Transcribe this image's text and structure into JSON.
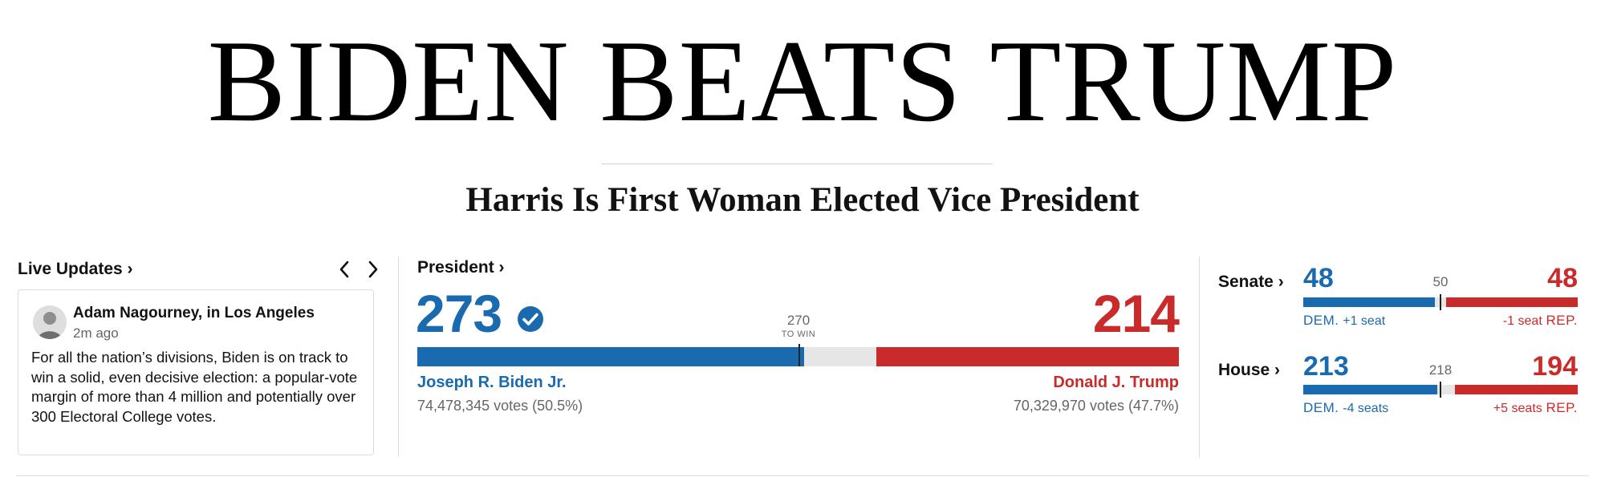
{
  "headline": "BIDEN BEATS TRUMP",
  "subheadline": "Harris Is First Woman Elected Vice President",
  "live_updates": {
    "title": "Live Updates ›",
    "author": "Adam Nagourney, in Los Angeles",
    "time_ago": "2m ago",
    "body": "For all the nation’s divisions, Biden is on track to win a solid, even decisive election: a popular-vote margin of more than 4 million and potentially over 300 Electoral College votes.",
    "prev_icon": "chevron-left-icon",
    "next_icon": "chevron-right-icon"
  },
  "president": {
    "title": "President ›",
    "to_win_number": "270",
    "to_win_label": "TO WIN",
    "electoral_total": 538,
    "dem": {
      "electoral_votes": "273",
      "candidate": "Joseph R. Biden Jr.",
      "votes": "74,478,345 votes (50.5%)",
      "winner_icon": "check-circle-icon"
    },
    "rep": {
      "electoral_votes": "214",
      "candidate": "Donald J. Trump",
      "votes": "70,329,970 votes (47.7%)"
    }
  },
  "senate": {
    "title": "Senate ›",
    "total": 100,
    "majority": "50",
    "dem": {
      "seats": "48",
      "party": "DEM.",
      "change": "+1 seat"
    },
    "rep": {
      "seats": "48",
      "party": "REP.",
      "change": "-1 seat"
    }
  },
  "house": {
    "title": "House ›",
    "total": 435,
    "majority": "218",
    "dem": {
      "seats": "213",
      "party": "DEM.",
      "change": "-4 seats"
    },
    "rep": {
      "seats": "194",
      "party": "REP.",
      "change": "+5 seats"
    }
  },
  "colors": {
    "dem": "#1a6aaf",
    "rep": "#c92a2a",
    "undecided": "#e6e6e6"
  }
}
